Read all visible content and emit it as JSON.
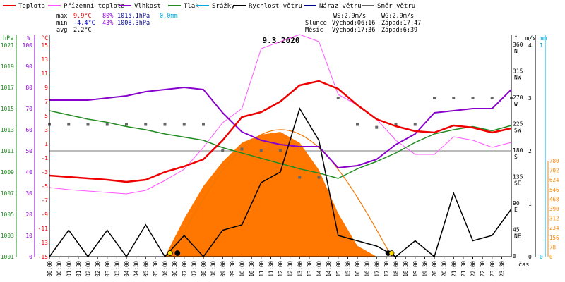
{
  "legend": [
    {
      "label": "Teplota",
      "color": "#ee0000"
    },
    {
      "label": "Přízemní teplota",
      "color": "#ff55ff"
    },
    {
      "label": "Vlhkost",
      "color": "#8800cc"
    },
    {
      "label": "Tlak",
      "color": "#228b22"
    },
    {
      "label": "Srážky",
      "color": "#00aadd"
    },
    {
      "label": "Rychlost větru",
      "color": "#000000"
    },
    {
      "label": "Náraz větru",
      "color": "#000088"
    },
    {
      "label": "Směr větru",
      "color": "#666666"
    }
  ],
  "stats": {
    "max_label": "max",
    "min_label": "min",
    "avg_label": "avg",
    "max_temp": "9.9°C",
    "max_hum": "80%",
    "max_press": "1015.1hPa",
    "max_rain": "0.0mm",
    "min_temp": "-4.4°C",
    "min_hum": "43%",
    "min_press": "1008.3hPa",
    "avg_temp": "2.2°C"
  },
  "wind_info": {
    "ws": "WS:2.9m/s",
    "wg": "WG:2.9m/s"
  },
  "sun_info": {
    "label": "Slunce",
    "rise": "Východ:06:16",
    "set": "Západ:17:47"
  },
  "moon_info": {
    "label": "Měsíc",
    "rise": "Východ:17:36",
    "set": "Západ:6:39"
  },
  "date": "9.3.2020",
  "xaxis_label": "čas",
  "colors": {
    "temp": "#ee0000",
    "ground_temp": "#ff55ff",
    "humidity": "#8800cc",
    "pressure": "#228b22",
    "rain": "#00aadd",
    "wind": "#000000",
    "gust": "#000088",
    "direction": "#666666",
    "solar_fill": "#ff7700",
    "solar_line": "#ee7700",
    "solar_axis": "#ff8800"
  },
  "axes": {
    "hpa_title": "hPa",
    "pct_title": "%",
    "c_title": "°C",
    "deg_title": "°",
    "ms_title": "m/s",
    "mm_title": "mm",
    "w_title": "W/m²",
    "hpa_ticks": [
      "1021",
      "1019",
      "1017",
      "1015",
      "1013",
      "1011",
      "1009",
      "1007",
      "1005",
      "1003",
      "1001"
    ],
    "pct_ticks": [
      "100",
      "90",
      "80",
      "70",
      "60",
      "50",
      "40",
      "30",
      "20",
      "10",
      "0"
    ],
    "c_ticks": [
      "15",
      "13",
      "11",
      "9",
      "7",
      "5",
      "3",
      "1",
      "-1",
      "-3",
      "-5",
      "-7",
      "-9",
      "-11",
      "-13",
      "-15"
    ],
    "deg_ticks": [
      "360",
      "315",
      "270",
      "225",
      "180",
      "135",
      "90",
      "45",
      "0"
    ],
    "dir_labels": [
      "N",
      "NW",
      "W",
      "SW",
      "S",
      "SE",
      "E",
      "NE",
      ""
    ],
    "ms_ticks": [
      "4",
      "3",
      "2",
      "1",
      "0"
    ],
    "mm_ticks": [
      "1",
      "0"
    ],
    "solar_ticks": [
      "780",
      "702",
      "624",
      "546",
      "468",
      "390",
      "312",
      "234",
      "156",
      "78",
      "0"
    ]
  },
  "chart_data": {
    "type": "line",
    "title": "9.3.2020",
    "x_ticks": [
      "00:00",
      "00:30",
      "01:00",
      "01:30",
      "02:00",
      "02:30",
      "03:00",
      "03:30",
      "04:00",
      "04:30",
      "05:00",
      "05:30",
      "06:00",
      "06:30",
      "07:00",
      "07:30",
      "08:00",
      "08:30",
      "09:00",
      "09:30",
      "10:00",
      "10:30",
      "11:00",
      "11:30",
      "12:00",
      "12:30",
      "13:00",
      "13:30",
      "14:00",
      "14:30",
      "15:00",
      "15:30",
      "16:00",
      "16:30",
      "17:00",
      "17:30",
      "18:00",
      "18:30",
      "19:00",
      "19:30",
      "20:00",
      "20:30",
      "21:00",
      "21:30",
      "22:00",
      "22:30",
      "23:00",
      "23:30"
    ],
    "x_hours": [
      0,
      1,
      2,
      3,
      4,
      5,
      6,
      7,
      8,
      9,
      10,
      11,
      12,
      13,
      14,
      15,
      16,
      17,
      18,
      19,
      20,
      21,
      22,
      23,
      24
    ],
    "series": [
      {
        "name": "Teplota",
        "unit": "°C",
        "values": [
          -3.5,
          -3.7,
          -3.9,
          -4.1,
          -4.4,
          -4.1,
          -3.0,
          -2.2,
          -1.2,
          1.5,
          4.8,
          5.5,
          7.0,
          9.3,
          9.9,
          8.8,
          6.5,
          4.5,
          3.5,
          2.8,
          2.6,
          3.6,
          3.3,
          2.6,
          3.2
        ]
      },
      {
        "name": "Přízemní teplota",
        "unit": "°C",
        "values": [
          -5.2,
          -5.5,
          -5.7,
          -5.9,
          -6.1,
          -5.6,
          -4.2,
          -2.6,
          0.5,
          4.0,
          6.0,
          14.5,
          15.5,
          16.5,
          15.5,
          8.0,
          6.5,
          4.5,
          1.5,
          -0.5,
          -0.5,
          2.0,
          1.5,
          0.5,
          1.2
        ]
      },
      {
        "name": "Vlhkost",
        "unit": "%",
        "values": [
          74,
          74,
          74,
          75,
          76,
          78,
          79,
          80,
          79,
          68,
          59,
          55,
          53,
          52,
          52,
          42,
          43,
          46,
          53,
          58,
          68,
          69,
          70,
          70,
          79
        ]
      },
      {
        "name": "Tlak",
        "unit": "hPa",
        "values": [
          1014.8,
          1014.4,
          1014.0,
          1013.7,
          1013.3,
          1013.0,
          1012.6,
          1012.3,
          1012.0,
          1011.3,
          1010.8,
          1010.3,
          1009.8,
          1009.3,
          1008.9,
          1008.4,
          1009.3,
          1010.0,
          1010.8,
          1011.8,
          1012.6,
          1013.0,
          1013.3,
          1012.9,
          1013.4
        ]
      },
      {
        "name": "Rychlost větru",
        "unit": "m/s",
        "values": [
          0,
          0.5,
          0,
          0.5,
          0,
          0.6,
          0,
          0.4,
          0,
          0.5,
          0.6,
          1.4,
          1.6,
          2.8,
          2.2,
          0.4,
          0.3,
          0.2,
          0,
          0.3,
          0,
          1.2,
          0.3,
          0.4,
          0.9
        ]
      },
      {
        "name": "Směr větru",
        "unit": "°",
        "values": [
          225,
          225,
          225,
          225,
          225,
          225,
          225,
          225,
          225,
          180,
          183,
          180,
          180,
          135,
          135,
          270,
          225,
          220,
          225,
          225,
          270,
          270,
          270,
          270,
          270
        ]
      },
      {
        "name": "Sluneční záření",
        "unit": "W/m²",
        "values": [
          0,
          0,
          0,
          0,
          0,
          0,
          0,
          140,
          260,
          350,
          420,
          450,
          460,
          420,
          320,
          160,
          40,
          0,
          0,
          0,
          0,
          0,
          0,
          0,
          0
        ]
      },
      {
        "name": "Srážky",
        "unit": "mm",
        "values": [
          0,
          0,
          0,
          0,
          0,
          0,
          0,
          0,
          0,
          0,
          0,
          0,
          0,
          0,
          0,
          0,
          0,
          0,
          0,
          0,
          0,
          0,
          0,
          0,
          0
        ]
      }
    ],
    "ylim_temp": [
      -15,
      15
    ],
    "ylim_pct": [
      0,
      100
    ],
    "ylim_press": [
      1001,
      1021
    ],
    "ylim_dir": [
      0,
      360
    ],
    "ylim_wind": [
      0,
      4
    ],
    "ylim_solar": [
      0,
      780
    ],
    "grid": false,
    "legend_position": "top"
  }
}
